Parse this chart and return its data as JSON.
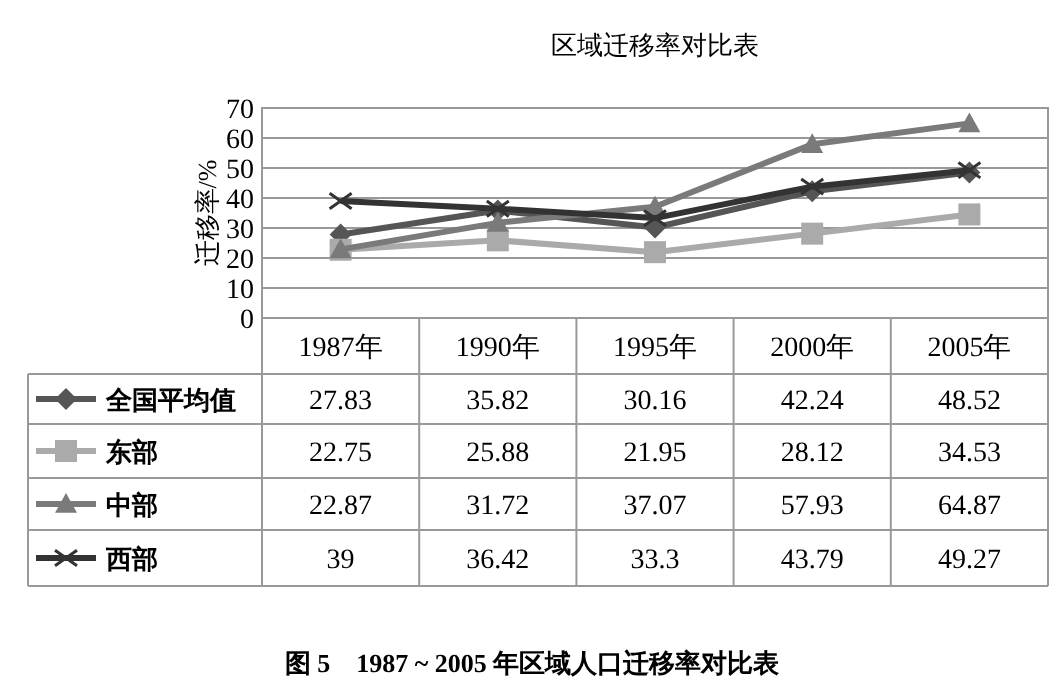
{
  "chart_data": {
    "type": "line",
    "title": "区域迁移率对比表",
    "ylabel": "迁移率/%",
    "categories": [
      "1987年",
      "1990年",
      "1995年",
      "2000年",
      "2005年"
    ],
    "series": [
      {
        "name": "全国平均值",
        "color": "#555555",
        "marker": "diamond",
        "values": [
          27.83,
          35.82,
          30.16,
          42.24,
          48.52
        ]
      },
      {
        "name": "东部",
        "color": "#aaaaaa",
        "marker": "square",
        "values": [
          22.75,
          25.88,
          21.95,
          28.12,
          34.53
        ]
      },
      {
        "name": "中部",
        "color": "#7a7a7a",
        "marker": "triangle",
        "values": [
          22.87,
          31.72,
          37.07,
          57.93,
          64.87
        ]
      },
      {
        "name": "西部",
        "color": "#333333",
        "marker": "cross",
        "values": [
          39,
          36.42,
          33.3,
          43.79,
          49.27
        ]
      }
    ],
    "ylim": [
      0,
      70
    ],
    "yticks": [
      0,
      10,
      20,
      30,
      40,
      50,
      60,
      70
    ],
    "grid": "y",
    "legend": "left",
    "data_labels": true,
    "line_style": "solid",
    "annotations": [
      "图 5　1987 ~ 2005 年区域人口迁移率对比表"
    ]
  }
}
